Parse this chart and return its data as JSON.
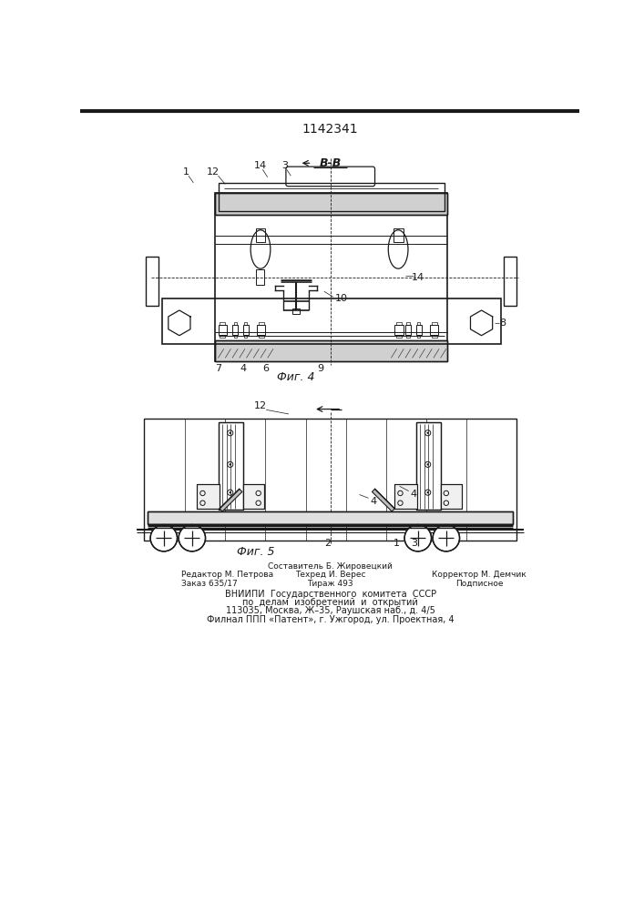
{
  "title": "1142341",
  "bg_color": "#ffffff",
  "line_color": "#1a1a1a",
  "fig4_label": "Фиг. 4",
  "fig5_label": "Фиг. 5",
  "section_label": "В-В",
  "footer_left_line1": "Редактор М. Петрова",
  "footer_left_line2": "Заказ 635/17",
  "footer_center_line0": "Составитель Б. Жировецкий",
  "footer_center_line1": "Техред И. Верес",
  "footer_center_line2": "Тираж 493",
  "footer_right_line1": "Корректор М. Демчик",
  "footer_right_line2": "Подписное",
  "footer_vnipi_1": "ВНИИПИ  Государственного  комитета  СССР",
  "footer_vnipi_2": "по  делам  изобретений  и  открытий",
  "footer_vnipi_3": "113035, Москва, Ж–35, Раушская наб., д. 4/5",
  "footer_vnipi_4": "Филнал ППП «Патент», г. Ужгород, ул. Проектная, 4"
}
